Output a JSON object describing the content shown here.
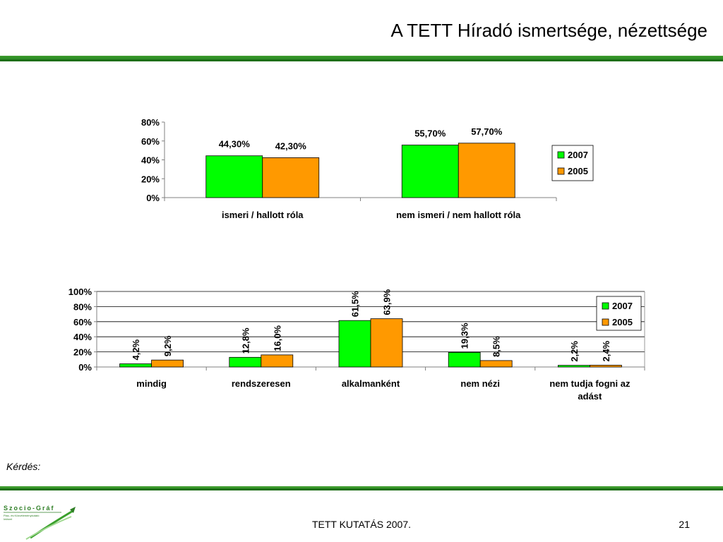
{
  "slide": {
    "title": "A TETT Híradó ismertsége, nézettsége",
    "question": "Kérdés:",
    "footer": "TETT KUTATÁS 2007.",
    "page_number": "21",
    "logo": {
      "name": "Szocio-Gráf",
      "subtitle": "Piac- és Közvéleménykutató Intézet"
    }
  },
  "colors": {
    "series_2007": "#00ff00",
    "series_2005": "#ff9900",
    "accent_green": "#2f8f26",
    "axis": "#808080"
  },
  "chart_data": [
    {
      "type": "bar",
      "title": "",
      "categories": [
        "ismeri / hallott róla",
        "nem ismeri / nem hallott róla"
      ],
      "series": [
        {
          "name": "2007",
          "values": [
            44.3,
            55.7
          ],
          "labels": [
            "44,30%",
            "55,70%"
          ]
        },
        {
          "name": "2005",
          "values": [
            42.3,
            57.7
          ],
          "labels": [
            "42,30%",
            "57,70%"
          ]
        }
      ],
      "ylim": [
        0,
        80
      ],
      "yticks": [
        "0%",
        "20%",
        "40%",
        "60%",
        "80%"
      ],
      "grid": false,
      "legend": "right",
      "data_label_orientation": "horizontal"
    },
    {
      "type": "bar",
      "title": "",
      "categories": [
        "mindig",
        "rendszeresen",
        "alkalmanként",
        "nem nézi",
        "nem tudja fogni az adást"
      ],
      "series": [
        {
          "name": "2007",
          "values": [
            4.2,
            12.8,
            61.5,
            19.3,
            2.2
          ],
          "labels": [
            "4,2%",
            "12,8%",
            "61,5%",
            "19,3%",
            "2,2%"
          ]
        },
        {
          "name": "2005",
          "values": [
            9.2,
            16.0,
            63.9,
            8.5,
            2.4
          ],
          "labels": [
            "9,2%",
            "16,0%",
            "63,9%",
            "8,5%",
            "2,4%"
          ]
        }
      ],
      "ylim": [
        0,
        100
      ],
      "yticks": [
        "0%",
        "20%",
        "40%",
        "60%",
        "80%",
        "100%"
      ],
      "grid": true,
      "legend": "top-right",
      "data_label_orientation": "vertical"
    }
  ]
}
